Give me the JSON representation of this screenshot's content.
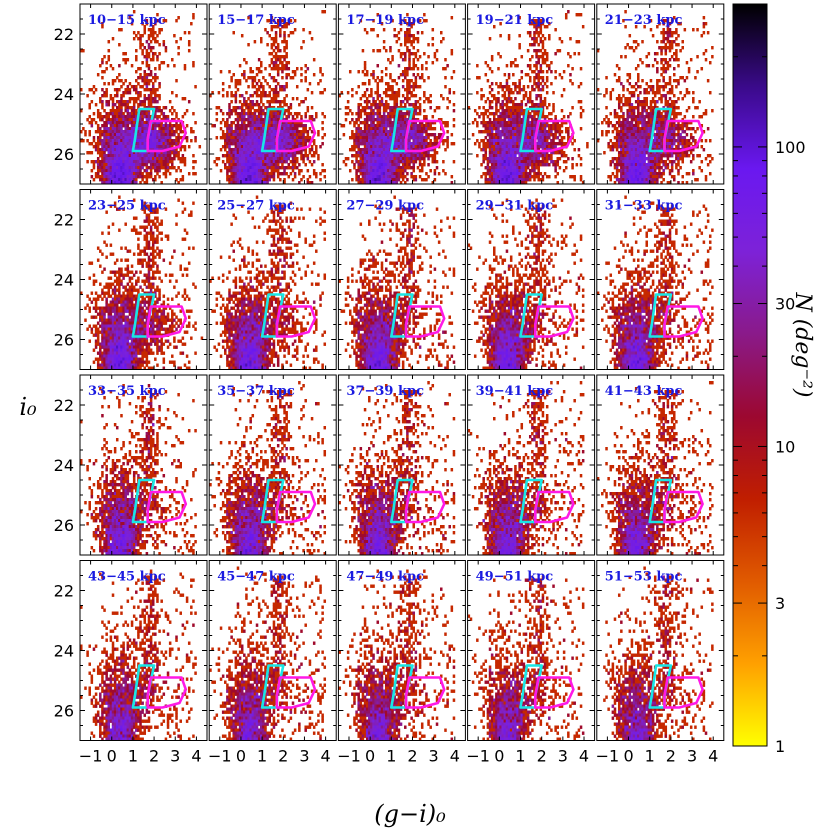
{
  "chart_data": {
    "type": "heatmap",
    "title": "",
    "xlabel": "(g−i)₀",
    "ylabel": "i₀",
    "xlim": [
      -1.5,
      4.5
    ],
    "ylim": [
      27.0,
      21.0
    ],
    "x_ticks": [
      -1,
      0,
      1,
      2,
      3,
      4
    ],
    "x_tick_labels": [
      "−1",
      "0",
      "1",
      "2",
      "3",
      "4"
    ],
    "y_ticks": [
      22,
      24,
      26
    ],
    "y_tick_labels": [
      "22",
      "24",
      "26"
    ],
    "panels": [
      {
        "label": "10−15 kpc"
      },
      {
        "label": "15−17 kpc"
      },
      {
        "label": "17−19 kpc"
      },
      {
        "label": "19−21 kpc"
      },
      {
        "label": "21−23 kpc"
      },
      {
        "label": "23−25 kpc"
      },
      {
        "label": "25−27 kpc"
      },
      {
        "label": "27−29 kpc"
      },
      {
        "label": "29−31 kpc"
      },
      {
        "label": "31−33 kpc"
      },
      {
        "label": "33−35 kpc"
      },
      {
        "label": "35−37 kpc"
      },
      {
        "label": "37−39 kpc"
      },
      {
        "label": "39−41 kpc"
      },
      {
        "label": "41−43 kpc"
      },
      {
        "label": "43−45 kpc"
      },
      {
        "label": "45−47 kpc"
      },
      {
        "label": "47−49 kpc"
      },
      {
        "label": "49−51 kpc"
      },
      {
        "label": "51−53 kpc"
      }
    ],
    "selection_boxes": [
      {
        "name": "cyan box",
        "color": "#19e6e6",
        "points": [
          [
            1.3,
            24.5
          ],
          [
            2.0,
            24.5
          ],
          [
            1.7,
            25.5
          ],
          [
            1.7,
            25.9
          ],
          [
            1.0,
            25.9
          ],
          [
            1.1,
            25.5
          ]
        ]
      },
      {
        "name": "magenta box",
        "color": "#ff19e6",
        "points": [
          [
            1.85,
            24.9
          ],
          [
            3.3,
            24.9
          ],
          [
            3.5,
            25.3
          ],
          [
            3.2,
            25.75
          ],
          [
            2.4,
            25.9
          ],
          [
            1.7,
            25.9
          ],
          [
            1.7,
            25.5
          ]
        ]
      }
    ],
    "colorbar": {
      "label": "N (deg⁻²)",
      "scale": "log",
      "range": [
        1,
        300
      ],
      "ticks": [
        1,
        3,
        10,
        30,
        100
      ],
      "tick_labels": [
        "1",
        "3",
        "10",
        "30",
        "100"
      ],
      "colors": [
        "#ffff00",
        "#ffa000",
        "#e05a00",
        "#c01e00",
        "#9c0830",
        "#8a1a8a",
        "#7d22d8",
        "#6a18f0",
        "#3a0a8a",
        "#000000"
      ]
    }
  }
}
